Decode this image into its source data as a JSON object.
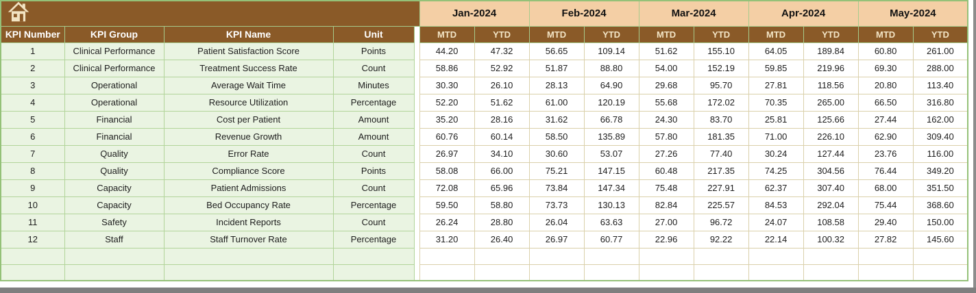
{
  "colors": {
    "header_brown": "#8a5a28",
    "month_peach": "#f4cfa5",
    "left_cell_green": "#eaf4e2",
    "green_border": "#a6cb8c",
    "tan_border": "#dad0aa",
    "header_text_cream": "#f3e5c6",
    "chrome_gray": "#7f7f7f"
  },
  "icons": {
    "home": "house"
  },
  "table": {
    "left_headers": [
      "KPI Number",
      "KPI Group",
      "KPI Name",
      "Unit"
    ],
    "months": [
      "Jan-2024",
      "Feb-2024",
      "Mar-2024",
      "Apr-2024",
      "May-2024"
    ],
    "sub_headers": [
      "MTD",
      "YTD"
    ],
    "rows": [
      {
        "kpi_number": "1",
        "kpi_group": "Clinical Performance",
        "kpi_name": "Patient Satisfaction Score",
        "unit": "Points",
        "values": [
          "44.20",
          "47.32",
          "56.65",
          "109.14",
          "51.62",
          "155.10",
          "64.05",
          "189.84",
          "60.80",
          "261.00"
        ]
      },
      {
        "kpi_number": "2",
        "kpi_group": "Clinical Performance",
        "kpi_name": "Treatment Success Rate",
        "unit": "Count",
        "values": [
          "58.86",
          "52.92",
          "51.87",
          "88.80",
          "54.00",
          "152.19",
          "59.85",
          "219.96",
          "69.30",
          "288.00"
        ]
      },
      {
        "kpi_number": "3",
        "kpi_group": "Operational",
        "kpi_name": "Average Wait Time",
        "unit": "Minutes",
        "values": [
          "30.30",
          "26.10",
          "28.13",
          "64.90",
          "29.68",
          "95.70",
          "27.81",
          "118.56",
          "20.80",
          "113.40"
        ]
      },
      {
        "kpi_number": "4",
        "kpi_group": "Operational",
        "kpi_name": "Resource Utilization",
        "unit": "Percentage",
        "values": [
          "52.20",
          "51.62",
          "61.00",
          "120.19",
          "55.68",
          "172.02",
          "70.35",
          "265.00",
          "66.50",
          "316.80"
        ]
      },
      {
        "kpi_number": "5",
        "kpi_group": "Financial",
        "kpi_name": "Cost per Patient",
        "unit": "Amount",
        "values": [
          "35.20",
          "28.16",
          "31.62",
          "66.78",
          "24.30",
          "83.70",
          "25.81",
          "125.66",
          "27.44",
          "162.00"
        ]
      },
      {
        "kpi_number": "6",
        "kpi_group": "Financial",
        "kpi_name": "Revenue Growth",
        "unit": "Amount",
        "values": [
          "60.76",
          "60.14",
          "58.50",
          "135.89",
          "57.80",
          "181.35",
          "71.00",
          "226.10",
          "62.90",
          "309.40"
        ]
      },
      {
        "kpi_number": "7",
        "kpi_group": "Quality",
        "kpi_name": "Error Rate",
        "unit": "Count",
        "values": [
          "26.97",
          "34.10",
          "30.60",
          "53.07",
          "27.26",
          "77.40",
          "30.24",
          "127.44",
          "23.76",
          "116.00"
        ]
      },
      {
        "kpi_number": "8",
        "kpi_group": "Quality",
        "kpi_name": "Compliance Score",
        "unit": "Points",
        "values": [
          "58.08",
          "66.00",
          "75.21",
          "147.15",
          "60.48",
          "217.35",
          "74.25",
          "304.56",
          "76.44",
          "349.20"
        ]
      },
      {
        "kpi_number": "9",
        "kpi_group": "Capacity",
        "kpi_name": "Patient Admissions",
        "unit": "Count",
        "values": [
          "72.08",
          "65.96",
          "73.84",
          "147.34",
          "75.48",
          "227.91",
          "62.37",
          "307.40",
          "68.00",
          "351.50"
        ]
      },
      {
        "kpi_number": "10",
        "kpi_group": "Capacity",
        "kpi_name": "Bed Occupancy Rate",
        "unit": "Percentage",
        "values": [
          "59.50",
          "58.80",
          "73.73",
          "130.13",
          "82.84",
          "225.57",
          "84.53",
          "292.04",
          "75.44",
          "368.60"
        ]
      },
      {
        "kpi_number": "11",
        "kpi_group": "Safety",
        "kpi_name": "Incident Reports",
        "unit": "Count",
        "values": [
          "26.24",
          "28.80",
          "26.04",
          "63.63",
          "27.00",
          "96.72",
          "24.07",
          "108.58",
          "29.40",
          "150.00"
        ]
      },
      {
        "kpi_number": "12",
        "kpi_group": "Staff",
        "kpi_name": "Staff Turnover Rate",
        "unit": "Percentage",
        "values": [
          "31.20",
          "26.40",
          "26.97",
          "60.77",
          "22.96",
          "92.22",
          "22.14",
          "100.32",
          "27.82",
          "145.60"
        ]
      }
    ],
    "empty_rows": 2
  }
}
